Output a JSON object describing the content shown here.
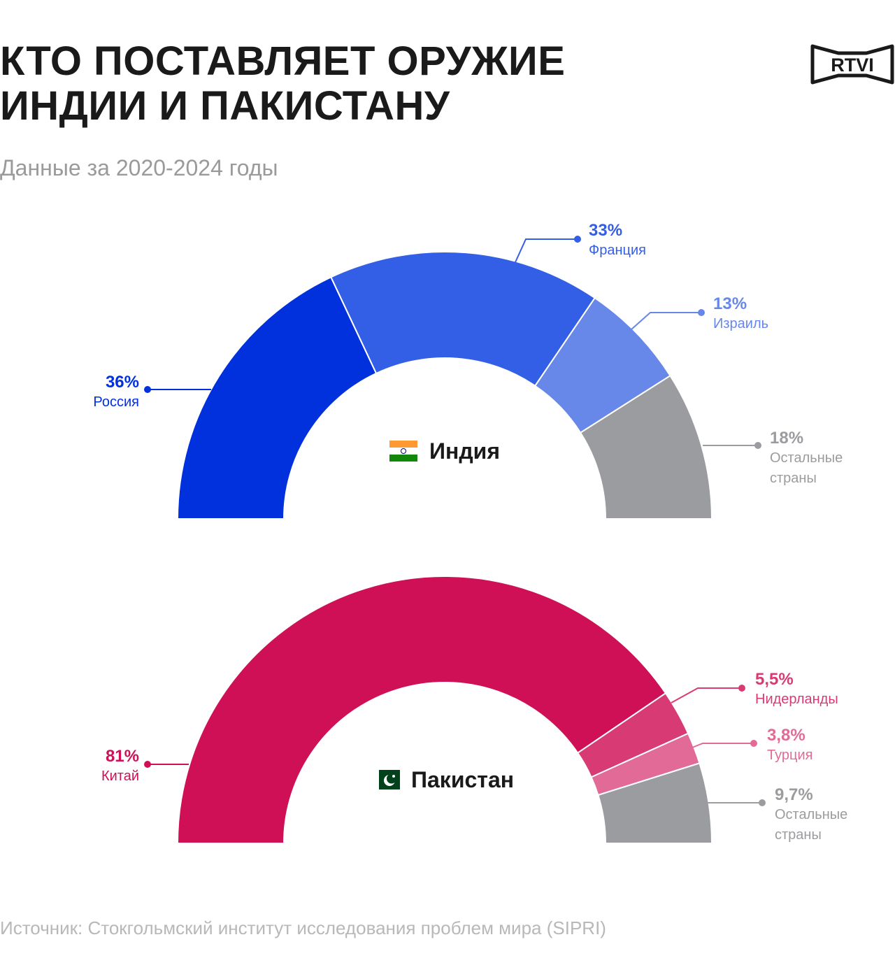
{
  "header": {
    "title_line1": "КТО ПОСТАВЛЯЕТ ОРУЖИЕ",
    "title_line2": "ИНДИИ И ПАКИСТАНУ",
    "subtitle": "Данные за 2020-2024 годы",
    "logo_text": "RTVI"
  },
  "footer": {
    "source": "Источник: Стокгольмский институт исследования проблем мира (SIPRI)"
  },
  "chart_data": [
    {
      "type": "pie",
      "variant": "half-donut",
      "center_label": "Индия",
      "center_icon": "india-flag-icon",
      "series": [
        {
          "name": "Россия",
          "label": "36%",
          "value": 36,
          "color": "#0031dd"
        },
        {
          "name": "Франция",
          "label": "33%",
          "value": 33,
          "color": "#335fe6"
        },
        {
          "name": "Израиль",
          "label": "13%",
          "value": 13,
          "color": "#6787e9"
        },
        {
          "name": "Остальные страны",
          "name_lines": [
            "Остальные",
            "страны"
          ],
          "label": "18%",
          "value": 18,
          "color": "#9b9c9f"
        }
      ]
    },
    {
      "type": "pie",
      "variant": "half-donut",
      "center_label": "Пакистан",
      "center_icon": "pakistan-flag-icon",
      "series": [
        {
          "name": "Китай",
          "label": "81%",
          "value": 81,
          "color": "#cf1056"
        },
        {
          "name": "Нидерланды",
          "label": "5,5%",
          "value": 5.5,
          "color": "#d83b74"
        },
        {
          "name": "Турция",
          "label": "3,8%",
          "value": 3.8,
          "color": "#e16b96"
        },
        {
          "name": "Остальные страны",
          "name_lines": [
            "Остальные",
            "страны"
          ],
          "label": "9,7%",
          "value": 9.7,
          "color": "#9b9c9f"
        }
      ]
    }
  ]
}
